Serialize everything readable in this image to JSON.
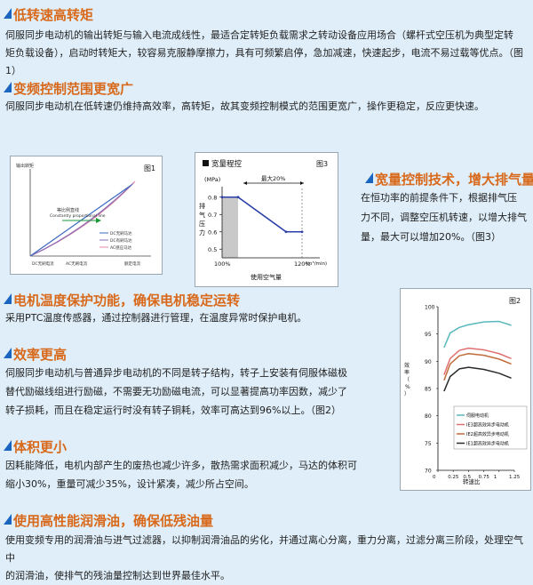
{
  "sections": [
    {
      "title": "低转速高转矩",
      "lines": [
        "伺服同步电动机的输出转矩与输入电流成线性，最适合定转矩负载需求之转动设备应用场合（螺杆式空压机为典型定转",
        "矩负载设备），启动时转矩大，较容易克服静摩擦力，具有可频繁启停，急加减速，快速起步，电流不易过载等优点。（图1）"
      ]
    },
    {
      "title": "变频控制范围更宽广",
      "lines": [
        "伺服同步电动机在低转速仍维持高效率，高转矩，故其变频控制模式的范围更宽广，操作更稳定，反应更快速。"
      ]
    },
    {
      "title": "宽量控制技术，增大排气量",
      "lines": [
        "在恒功率的前提条件下，根据排气压",
        "力不同，调整空压机转速，以增大排气",
        "量，最大可以增加20%。（图3）"
      ]
    },
    {
      "title": "电机温度保护功能，确保电机稳定运转",
      "lines": [
        "采用PTC温度传感器，通过控制器进行管理，在温度异常时保护电机。"
      ]
    },
    {
      "title": "效率更高",
      "lines": [
        "伺服同步电动机与普通异步电动机的不同是转子结构，转子上安装有伺服体磁极",
        "替代励磁线组进行励磁，不需要无功励磁电流，可以显著提高功率因数，减少了",
        "转子损耗，而且在稳定运行时没有转子铜耗，效率可高达到96%以上。（图2）"
      ]
    },
    {
      "title": "体积更小",
      "lines": [
        "因耗能降低，电机内部产生的废热也减少许多，散热需求面积减少，马达的体积可",
        "缩小30%，重量可减少35%，设计紧凑，减少所占空间。"
      ]
    },
    {
      "title": "使用高性能润滑油，确保低残油量",
      "lines": [
        "使用变频专用的润滑油与进气过滤器，以抑制润滑油品的劣化，并通过离心分离，重力分离，过滤分离三阶段，处理空气中",
        "的润滑油，使排气的残油量控制达到世界最佳水平。"
      ]
    }
  ],
  "fig1": {
    "label": "图1",
    "ylabel": "输出转矩",
    "line_label_1": "等比例直线",
    "line_label_2": "Constantly proportional line",
    "legend": [
      "DC无刷马达",
      "DC有刷马达",
      "AC感应马达"
    ],
    "xlabels": [
      "DC无刷电流",
      "AC无刷电流",
      "额定电流"
    ]
  },
  "fig3": {
    "label": "图3",
    "title": "宽量程控",
    "unit_y": "(MPa)",
    "ylabel_chars": [
      "排",
      "气",
      "压",
      "力"
    ],
    "annotation": "最大20%",
    "unit_x": "(m³/min)",
    "xlabel": "使用空气量",
    "chart_data": {
      "type": "line",
      "x_ticks": [
        "100%",
        "120%"
      ],
      "y_ticks": [
        "0.8",
        "0.7",
        "0.6",
        "0.5"
      ],
      "ylim": [
        0.45,
        0.85
      ],
      "series": [
        {
          "points": [
            [
              100,
              0.8
            ],
            [
              104,
              0.8
            ],
            [
              116,
              0.6
            ],
            [
              120,
              0.6
            ]
          ]
        }
      ]
    }
  },
  "fig2": {
    "label": "图2",
    "ylabel_chars": [
      "效",
      "率",
      "（",
      "%",
      "）"
    ],
    "xlabel": "转速比",
    "colors": [
      "#5ab8bb",
      "#e07070",
      "#c26b3a",
      "#2b2b2b"
    ],
    "chart_data": {
      "type": "line",
      "xlim": [
        0,
        1.25
      ],
      "ylim": [
        70,
        100
      ],
      "x_ticks": [
        "0",
        "0.25",
        "0.5",
        "0.75",
        "1",
        "1.25"
      ],
      "y_ticks": [
        "100",
        "95",
        "90",
        "85",
        "80",
        "75",
        "70"
      ],
      "series": [
        {
          "name": "伺服电动机",
          "x": [
            0.1,
            0.2,
            0.35,
            0.5,
            0.75,
            1.0,
            1.2
          ],
          "values": [
            92.5,
            95.2,
            96.2,
            96.7,
            97.2,
            97.3,
            96.6
          ]
        },
        {
          "name": "IE3超高效异步电动机",
          "x": [
            0.1,
            0.2,
            0.35,
            0.5,
            0.75,
            1.0,
            1.2
          ],
          "values": [
            87.5,
            90.5,
            92.0,
            92.4,
            92.1,
            91.4,
            90.5
          ]
        },
        {
          "name": "IE2超高效异步电动机",
          "x": [
            0.1,
            0.2,
            0.35,
            0.5,
            0.75,
            1.0,
            1.2
          ],
          "values": [
            86.5,
            89.5,
            91.0,
            91.4,
            91.1,
            90.4,
            89.5
          ]
        },
        {
          "name": "IE1超高效异步电动机",
          "x": [
            0.1,
            0.2,
            0.35,
            0.5,
            0.75,
            1.0,
            1.2
          ],
          "values": [
            84.5,
            87.2,
            88.6,
            88.9,
            88.5,
            87.8,
            86.9
          ]
        }
      ]
    }
  }
}
